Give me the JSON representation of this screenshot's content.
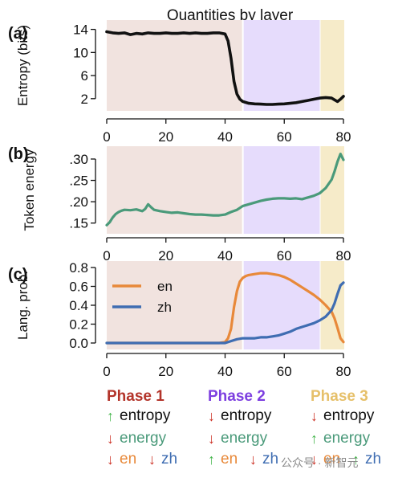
{
  "title": "Quantities by layer",
  "colors": {
    "phase1": "#b3342a",
    "phase2": "#7d3fe0",
    "phase3": "#e6c06a",
    "phase1_bg": "#f1e3df",
    "phase2_bg": "#e6dcfc",
    "phase3_bg": "#f6ebc9",
    "entropy_line": "#111111",
    "energy_line": "#4a9a7a",
    "en": "#e8893a",
    "zh": "#3f6db2",
    "up_arrow": "#43b54a",
    "down_arrow": "#cc2e22"
  },
  "chart_data": [
    {
      "panel": "(a)",
      "type": "line",
      "title": "Quantities by layer",
      "ylabel": "Entropy (bits)",
      "xlim": [
        0,
        80
      ],
      "ylim": [
        1,
        14.5
      ],
      "xticks": [
        0,
        20,
        40,
        60,
        80
      ],
      "yticks": [
        2,
        6,
        10,
        14
      ],
      "ytick_labels": [
        "2",
        "6",
        "10",
        "14"
      ],
      "phases": [
        [
          0,
          46
        ],
        [
          46,
          72
        ],
        [
          72,
          80
        ]
      ],
      "series": [
        {
          "color": "#111111",
          "x": [
            0,
            2,
            4,
            6,
            8,
            10,
            12,
            14,
            16,
            18,
            20,
            22,
            24,
            26,
            28,
            30,
            32,
            34,
            36,
            38,
            40,
            41,
            42,
            43,
            44,
            45,
            46,
            48,
            50,
            52,
            54,
            56,
            58,
            60,
            62,
            64,
            66,
            68,
            70,
            72,
            74,
            76,
            77,
            78,
            79,
            80
          ],
          "y": [
            13.6,
            13.4,
            13.3,
            13.4,
            13.1,
            13.3,
            13.2,
            13.4,
            13.3,
            13.3,
            13.4,
            13.3,
            13.3,
            13.4,
            13.3,
            13.4,
            13.3,
            13.3,
            13.4,
            13.4,
            13.2,
            12.0,
            9.0,
            5.0,
            2.8,
            1.9,
            1.5,
            1.2,
            1.1,
            1.05,
            1.0,
            1.0,
            1.05,
            1.1,
            1.2,
            1.3,
            1.5,
            1.7,
            1.9,
            2.1,
            2.2,
            2.1,
            1.8,
            1.5,
            1.9,
            2.4
          ]
        }
      ]
    },
    {
      "panel": "(b)",
      "type": "line",
      "ylabel": "Token energy",
      "xlim": [
        0,
        80
      ],
      "ylim": [
        0.14,
        0.315
      ],
      "xticks": [
        0,
        20,
        40,
        60,
        80
      ],
      "yticks": [
        0.15,
        0.2,
        0.25,
        0.3
      ],
      "ytick_labels": [
        ".15",
        ".20",
        ".25",
        ".30"
      ],
      "phases": [
        [
          0,
          46
        ],
        [
          46,
          72
        ],
        [
          72,
          80
        ]
      ],
      "series": [
        {
          "color": "#4a9a7a",
          "x": [
            0,
            1,
            2,
            3,
            4,
            5,
            6,
            8,
            10,
            12,
            13,
            14,
            15,
            16,
            18,
            20,
            22,
            24,
            26,
            28,
            30,
            32,
            34,
            36,
            38,
            40,
            42,
            44,
            46,
            48,
            50,
            52,
            54,
            56,
            58,
            60,
            62,
            64,
            66,
            68,
            70,
            72,
            74,
            76,
            77,
            78,
            79,
            80
          ],
          "y": [
            0.145,
            0.152,
            0.163,
            0.171,
            0.176,
            0.179,
            0.181,
            0.18,
            0.182,
            0.178,
            0.183,
            0.194,
            0.187,
            0.181,
            0.178,
            0.176,
            0.174,
            0.175,
            0.173,
            0.171,
            0.17,
            0.17,
            0.169,
            0.168,
            0.168,
            0.17,
            0.176,
            0.181,
            0.19,
            0.194,
            0.198,
            0.202,
            0.205,
            0.207,
            0.208,
            0.208,
            0.207,
            0.208,
            0.206,
            0.21,
            0.214,
            0.22,
            0.232,
            0.252,
            0.271,
            0.294,
            0.312,
            0.298
          ]
        }
      ]
    },
    {
      "panel": "(c)",
      "type": "line",
      "ylabel": "Lang. prob.",
      "xlim": [
        0,
        80
      ],
      "ylim": [
        0,
        0.8
      ],
      "xticks": [
        0,
        20,
        40,
        60,
        80
      ],
      "yticks": [
        0.0,
        0.2,
        0.4,
        0.6,
        0.8
      ],
      "ytick_labels": [
        "0.0",
        "0.2",
        "0.4",
        "0.6",
        "0.8"
      ],
      "phases": [
        [
          0,
          46
        ],
        [
          46,
          72
        ],
        [
          72,
          80
        ]
      ],
      "legend": "top-left",
      "series": [
        {
          "name": "en",
          "color": "#e8893a",
          "x": [
            0,
            10,
            20,
            30,
            38,
            40,
            41,
            42,
            43,
            44,
            45,
            46,
            47,
            48,
            50,
            52,
            54,
            56,
            58,
            60,
            62,
            64,
            66,
            68,
            70,
            72,
            74,
            76,
            77,
            78,
            79,
            80
          ],
          "y": [
            0.0,
            0.0,
            0.0,
            0.0,
            0.0,
            0.01,
            0.05,
            0.15,
            0.38,
            0.55,
            0.65,
            0.69,
            0.71,
            0.72,
            0.73,
            0.74,
            0.74,
            0.73,
            0.72,
            0.7,
            0.67,
            0.63,
            0.59,
            0.55,
            0.51,
            0.46,
            0.4,
            0.33,
            0.26,
            0.16,
            0.05,
            0.01
          ]
        },
        {
          "name": "zh",
          "color": "#3f6db2",
          "x": [
            0,
            10,
            20,
            30,
            38,
            40,
            42,
            44,
            46,
            48,
            50,
            52,
            54,
            56,
            58,
            60,
            62,
            64,
            66,
            68,
            70,
            72,
            74,
            76,
            77,
            78,
            79,
            80
          ],
          "y": [
            0.0,
            0.0,
            0.0,
            0.0,
            0.0,
            0.0,
            0.02,
            0.04,
            0.05,
            0.05,
            0.05,
            0.06,
            0.06,
            0.07,
            0.08,
            0.1,
            0.12,
            0.15,
            0.17,
            0.19,
            0.21,
            0.24,
            0.28,
            0.35,
            0.42,
            0.52,
            0.61,
            0.64
          ]
        }
      ]
    }
  ],
  "phases": [
    {
      "title": "Phase 1",
      "rows": [
        {
          "items": [
            {
              "dir": "up",
              "label": "entropy",
              "color": "#111111"
            }
          ]
        },
        {
          "items": [
            {
              "dir": "down",
              "label": "energy",
              "color": "#4a9a7a"
            }
          ]
        },
        {
          "items": [
            {
              "dir": "down",
              "label": "en",
              "color": "#e8893a"
            },
            {
              "dir": "down",
              "label": "zh",
              "color": "#3f6db2"
            }
          ]
        }
      ]
    },
    {
      "title": "Phase 2",
      "rows": [
        {
          "items": [
            {
              "dir": "down",
              "label": "entropy",
              "color": "#111111"
            }
          ]
        },
        {
          "items": [
            {
              "dir": "down",
              "label": "energy",
              "color": "#4a9a7a"
            }
          ]
        },
        {
          "items": [
            {
              "dir": "up",
              "label": "en",
              "color": "#e8893a"
            },
            {
              "dir": "down",
              "label": "zh",
              "color": "#3f6db2"
            }
          ]
        }
      ]
    },
    {
      "title": "Phase 3",
      "rows": [
        {
          "items": [
            {
              "dir": "down",
              "label": "entropy",
              "color": "#111111"
            }
          ]
        },
        {
          "items": [
            {
              "dir": "up",
              "label": "energy",
              "color": "#4a9a7a"
            }
          ]
        },
        {
          "items": [
            {
              "dir": "down",
              "label": "en",
              "color": "#e8893a"
            },
            {
              "dir": "up",
              "label": "zh",
              "color": "#3f6db2"
            }
          ]
        }
      ]
    }
  ],
  "watermark": "公众号 · 新智元"
}
